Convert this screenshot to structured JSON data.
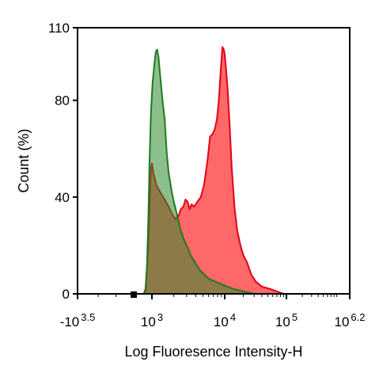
{
  "chart_data": {
    "type": "area",
    "xlabel": "Log Fluoresence Intensity-H",
    "ylabel": "Count  (%)",
    "x_scale": "biexponential (log10 intensity)",
    "xlim": [
      -3162,
      1585000
    ],
    "ylim": [
      0,
      110
    ],
    "grid": false,
    "legend": "none",
    "x_ticks": [
      {
        "value": -3162,
        "base": "-10",
        "exp": "3.5"
      },
      {
        "value": 1000,
        "base": "10",
        "exp": "3"
      },
      {
        "value": 10000,
        "base": "10",
        "exp": "4"
      },
      {
        "value": 100000,
        "base": "10",
        "exp": "5"
      },
      {
        "value": 1585000,
        "base": "10",
        "exp": "6.2"
      }
    ],
    "y_ticks": [
      0,
      40,
      80,
      110
    ],
    "series": [
      {
        "color": "#ff4d4d",
        "stroke": "#e0001b",
        "points": [
          [
            550,
            0
          ],
          [
            650,
            2
          ],
          [
            800,
            20
          ],
          [
            900,
            43
          ],
          [
            950,
            52
          ],
          [
            1000,
            54
          ],
          [
            1050,
            50
          ],
          [
            1150,
            45
          ],
          [
            1300,
            42
          ],
          [
            1500,
            39
          ],
          [
            1700,
            36
          ],
          [
            1900,
            33
          ],
          [
            2100,
            31
          ],
          [
            2300,
            32
          ],
          [
            2500,
            35
          ],
          [
            2700,
            36
          ],
          [
            2900,
            39
          ],
          [
            3100,
            38
          ],
          [
            3300,
            35
          ],
          [
            3500,
            37
          ],
          [
            3800,
            36
          ],
          [
            4200,
            38
          ],
          [
            4700,
            40
          ],
          [
            5200,
            45
          ],
          [
            5800,
            55
          ],
          [
            6300,
            65
          ],
          [
            6800,
            66
          ],
          [
            7300,
            68
          ],
          [
            7800,
            72
          ],
          [
            8300,
            80
          ],
          [
            8800,
            92
          ],
          [
            9300,
            102
          ],
          [
            9700,
            101
          ],
          [
            10000,
            99
          ],
          [
            10500,
            93
          ],
          [
            11200,
            84
          ],
          [
            12000,
            70
          ],
          [
            13000,
            52
          ],
          [
            14500,
            35
          ],
          [
            16000,
            26
          ],
          [
            18000,
            20
          ],
          [
            20000,
            16
          ],
          [
            23000,
            13
          ],
          [
            27000,
            8
          ],
          [
            32000,
            5
          ],
          [
            40000,
            3
          ],
          [
            55000,
            2
          ],
          [
            70000,
            1
          ],
          [
            90000,
            0
          ]
        ]
      },
      {
        "color": "#2e8b2e",
        "stroke": "#1f7a1f",
        "points": [
          [
            550,
            0
          ],
          [
            650,
            1
          ],
          [
            720,
            10
          ],
          [
            800,
            30
          ],
          [
            870,
            55
          ],
          [
            950,
            75
          ],
          [
            1020,
            87
          ],
          [
            1080,
            95
          ],
          [
            1130,
            100
          ],
          [
            1180,
            101
          ],
          [
            1230,
            98
          ],
          [
            1300,
            90
          ],
          [
            1400,
            80
          ],
          [
            1500,
            72
          ],
          [
            1600,
            58
          ],
          [
            1700,
            50
          ],
          [
            1850,
            43
          ],
          [
            2000,
            38
          ],
          [
            2200,
            33
          ],
          [
            2400,
            28
          ],
          [
            2700,
            23
          ],
          [
            3000,
            20
          ],
          [
            3400,
            16
          ],
          [
            3900,
            13
          ],
          [
            4500,
            10
          ],
          [
            5200,
            8
          ],
          [
            6200,
            6
          ],
          [
            7500,
            5
          ],
          [
            9000,
            4
          ],
          [
            11000,
            3
          ],
          [
            14000,
            2
          ],
          [
            20000,
            1
          ],
          [
            30000,
            0
          ]
        ]
      }
    ]
  }
}
